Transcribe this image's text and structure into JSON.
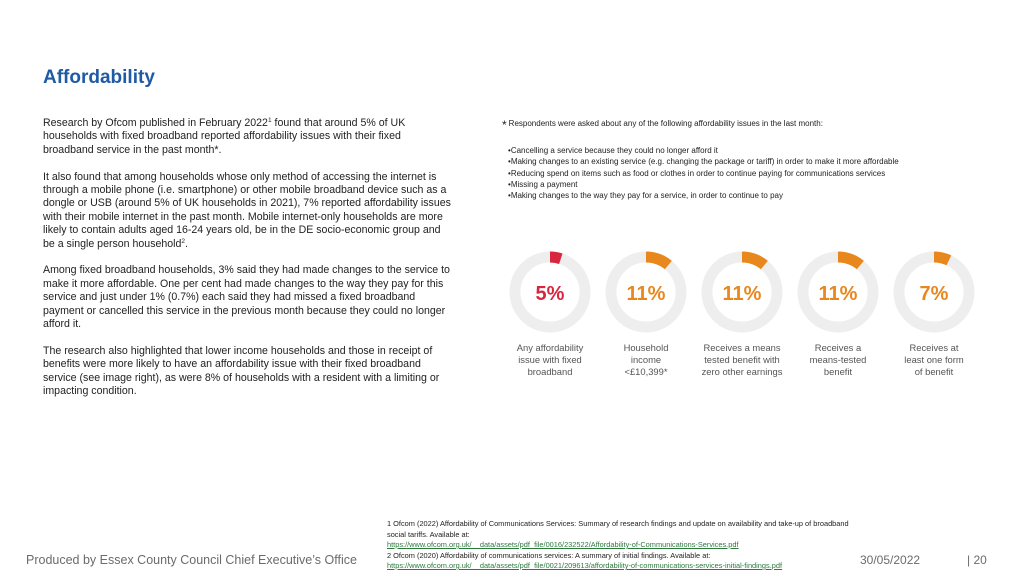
{
  "title": "Affordability",
  "paragraphs": {
    "p1a": "Research by Ofcom published in February 2022",
    "p1sup": "1",
    "p1b": " found that around 5% of UK households with fixed broadband reported affordability issues with their fixed broadband service in the past month*.",
    "p2a": "It also found that among households whose only method of accessing the internet is through a mobile phone (i.e. smartphone) or other mobile broadband device such as a dongle or USB (around 5% of UK households in 2021), 7% reported affordability issues with their mobile internet in the past month. Mobile internet-only households are more likely to contain adults aged 16-24 years old, be in the DE socio-economic group and be a single person household",
    "p2sup": "2",
    "p2b": ".",
    "p3": "Among fixed broadband households, 3% said they had made changes to the service to make it more affordable. One per cent had made changes to the way they pay for this service and just under 1% (0.7%) each said they had missed a fixed broadband payment or cancelled this service in the previous month because they could no longer afford it.",
    "p4": "The research also highlighted that lower income households and those in receipt of benefits were more likely to have an affordability issue with their fixed broadband service (see image right), as were 8% of households with a resident with a limiting or impacting condition."
  },
  "note": {
    "star": "*",
    "intro": "Respondents were asked about any of the following affordability issues in the last month:",
    "items": [
      "Cancelling a service because they could no longer afford it",
      "Making changes to an existing service (e.g. changing the package or tariff) in order to make it more affordable",
      "Reducing spend on items such as food or clothes in order to continue paying for communications services",
      "Missing a payment",
      "Making changes to the way they pay for a service, in order to continue to pay"
    ]
  },
  "stats": [
    {
      "value": "5%",
      "fraction": 0.05,
      "color": "#d7263d",
      "label_lines": [
        "Any affordability",
        "issue with fixed",
        "broadband"
      ]
    },
    {
      "value": "11%",
      "fraction": 0.11,
      "color": "#e8871e",
      "label_lines": [
        "Household",
        "income",
        "<£10,399*"
      ]
    },
    {
      "value": "11%",
      "fraction": 0.11,
      "color": "#e8871e",
      "label_lines": [
        "Receives a means",
        "tested benefit with",
        "zero other earnings"
      ]
    },
    {
      "value": "11%",
      "fraction": 0.11,
      "color": "#e8871e",
      "label_lines": [
        "Receives a",
        "means-tested",
        "benefit"
      ]
    },
    {
      "value": "7%",
      "fraction": 0.07,
      "color": "#e8871e",
      "label_lines": [
        "Receives at",
        "least one form",
        "of benefit"
      ]
    }
  ],
  "ring_track_color": "#eeeeee",
  "footnotes": {
    "f1": "1 Ofcom (2022) Affordability of Communications Services: Summary of research findings and update on availability and take-up of broadband social tariffs. Available at:",
    "f1link": "https://www.ofcom.org.uk/__data/assets/pdf_file/0016/232522/Affordability-of-Communications-Services.pdf",
    "f2": "2 Ofcom (2020) Affordability of communications services: A summary of initial findings. Available at:",
    "f2link": "https://www.ofcom.org.uk/__data/assets/pdf_file/0021/209613/affordability-of-communications-services-initial-findings.pdf"
  },
  "footer": {
    "producer": "Produced by Essex County Council Chief Executive’s Office",
    "date": "30/05/2022",
    "page": "|  20"
  }
}
